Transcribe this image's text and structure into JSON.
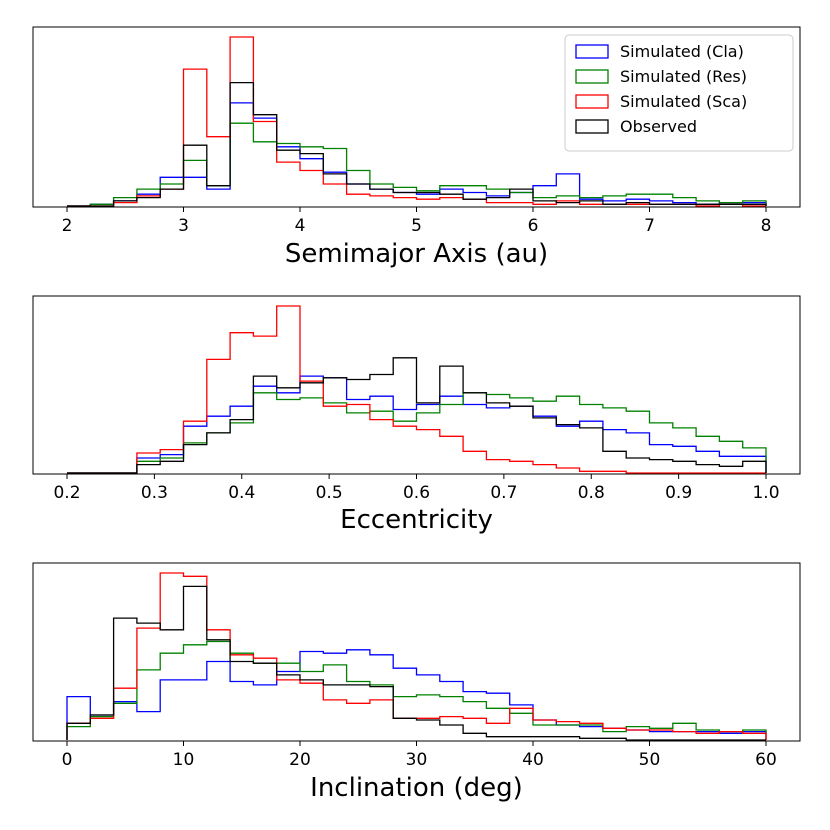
{
  "chart_data": [
    {
      "type": "histogram",
      "xlabel": "Semimajor Axis (au)",
      "xlim": [
        2,
        8
      ],
      "xticks": [
        "2",
        "3",
        "4",
        "5",
        "6",
        "7",
        "8"
      ],
      "xtick_values": [
        2,
        3,
        4,
        5,
        6,
        7,
        8
      ],
      "bin_edges": [
        2.0,
        2.2,
        2.4,
        2.6,
        2.8,
        3.0,
        3.2,
        3.4,
        3.6,
        3.8,
        4.0,
        4.2,
        4.4,
        4.6,
        4.8,
        5.0,
        5.2,
        5.4,
        5.6,
        5.8,
        6.0,
        6.2,
        6.4,
        6.6,
        6.8,
        7.0,
        7.2,
        7.4,
        7.6,
        7.8,
        8.0
      ],
      "ymax": 1.0,
      "legend": {
        "location": "top-right",
        "entries": [
          "Simulated (Cla)",
          "Simulated (Res)",
          "Simulated (Sca)",
          "Observed"
        ]
      },
      "series": [
        {
          "name": "Simulated (Cla)",
          "color": "#0000ff",
          "values": [
            0.0,
            0.01,
            0.03,
            0.07,
            0.17,
            0.17,
            0.1,
            0.61,
            0.52,
            0.35,
            0.28,
            0.2,
            0.13,
            0.1,
            0.08,
            0.07,
            0.1,
            0.08,
            0.06,
            0.08,
            0.12,
            0.19,
            0.04,
            0.03,
            0.04,
            0.03,
            0.02,
            0.01,
            0.02,
            0.02
          ]
        },
        {
          "name": "Simulated (Res)",
          "color": "#008000",
          "values": [
            0.0,
            0.01,
            0.05,
            0.1,
            0.13,
            0.27,
            0.12,
            0.49,
            0.38,
            0.37,
            0.35,
            0.34,
            0.21,
            0.13,
            0.11,
            0.09,
            0.12,
            0.12,
            0.1,
            0.08,
            0.05,
            0.06,
            0.05,
            0.06,
            0.07,
            0.07,
            0.05,
            0.03,
            0.02,
            0.03
          ]
        },
        {
          "name": "Simulated (Sca)",
          "color": "#ff0000",
          "values": [
            0.0,
            0.0,
            0.02,
            0.06,
            0.1,
            0.81,
            0.41,
            1.0,
            0.5,
            0.26,
            0.21,
            0.13,
            0.07,
            0.06,
            0.05,
            0.04,
            0.05,
            0.04,
            0.02,
            0.02,
            0.01,
            0.03,
            0.01,
            0.01,
            0.01,
            0.01,
            0.01,
            0.0,
            0.01,
            0.0
          ]
        },
        {
          "name": "Observed",
          "color": "#000000",
          "values": [
            0.0,
            0.0,
            0.03,
            0.05,
            0.1,
            0.36,
            0.12,
            0.73,
            0.54,
            0.33,
            0.31,
            0.19,
            0.13,
            0.1,
            0.08,
            0.08,
            0.07,
            0.04,
            0.05,
            0.1,
            0.03,
            0.02,
            0.03,
            0.01,
            0.02,
            0.01,
            0.01,
            0.01,
            0.01,
            0.01
          ]
        }
      ]
    },
    {
      "type": "histogram",
      "xlabel": "Eccentricity",
      "xlim": [
        0.2,
        1.0
      ],
      "xticks": [
        "0.2",
        "0.3",
        "0.4",
        "0.5",
        "0.6",
        "0.7",
        "0.8",
        "0.9",
        "1.0"
      ],
      "xtick_values": [
        0.2,
        0.3,
        0.4,
        0.5,
        0.6,
        0.7,
        0.8,
        0.9,
        1.0
      ],
      "bin_edges": [
        0.2,
        0.22667,
        0.25333,
        0.28,
        0.30667,
        0.33333,
        0.36,
        0.38667,
        0.41333,
        0.44,
        0.46667,
        0.49333,
        0.52,
        0.54667,
        0.57333,
        0.6,
        0.62667,
        0.65333,
        0.68,
        0.70667,
        0.73333,
        0.76,
        0.78667,
        0.81333,
        0.84,
        0.86667,
        0.89333,
        0.92,
        0.94667,
        0.97333,
        1.0
      ],
      "ymax": 1.0,
      "series": [
        {
          "name": "Simulated (Cla)",
          "color": "#0000ff",
          "values": [
            0.0,
            0.0,
            0.0,
            0.09,
            0.11,
            0.28,
            0.34,
            0.4,
            0.52,
            0.48,
            0.58,
            0.57,
            0.44,
            0.46,
            0.38,
            0.41,
            0.46,
            0.41,
            0.39,
            0.4,
            0.34,
            0.28,
            0.31,
            0.26,
            0.24,
            0.17,
            0.16,
            0.13,
            0.1,
            0.1
          ]
        },
        {
          "name": "Simulated (Res)",
          "color": "#008000",
          "values": [
            0.0,
            0.0,
            0.0,
            0.07,
            0.09,
            0.18,
            0.24,
            0.3,
            0.48,
            0.44,
            0.45,
            0.42,
            0.36,
            0.37,
            0.31,
            0.36,
            0.41,
            0.48,
            0.47,
            0.45,
            0.43,
            0.46,
            0.41,
            0.39,
            0.37,
            0.3,
            0.27,
            0.22,
            0.19,
            0.15
          ]
        },
        {
          "name": "Simulated (Sca)",
          "color": "#ff0000",
          "values": [
            0.0,
            0.0,
            0.0,
            0.12,
            0.14,
            0.31,
            0.68,
            0.84,
            0.82,
            1.0,
            0.55,
            0.4,
            0.41,
            0.32,
            0.28,
            0.26,
            0.22,
            0.13,
            0.08,
            0.07,
            0.05,
            0.03,
            0.01,
            0.01,
            0.0,
            0.0,
            0.0,
            0.0,
            0.0,
            0.0
          ]
        },
        {
          "name": "Observed",
          "color": "#000000",
          "values": [
            0.0,
            0.0,
            0.0,
            0.05,
            0.07,
            0.17,
            0.24,
            0.32,
            0.58,
            0.51,
            0.54,
            0.57,
            0.56,
            0.59,
            0.69,
            0.42,
            0.64,
            0.48,
            0.42,
            0.4,
            0.33,
            0.29,
            0.27,
            0.13,
            0.09,
            0.08,
            0.07,
            0.05,
            0.04,
            0.07
          ]
        }
      ]
    },
    {
      "type": "histogram",
      "xlabel": "Inclination (deg)",
      "xlim": [
        0,
        60
      ],
      "xticks": [
        "0",
        "10",
        "20",
        "30",
        "40",
        "50",
        "60"
      ],
      "xtick_values": [
        0,
        10,
        20,
        30,
        40,
        50,
        60
      ],
      "bin_edges": [
        0,
        2,
        4,
        6,
        8,
        10,
        12,
        14,
        16,
        18,
        20,
        22,
        24,
        26,
        28,
        30,
        32,
        34,
        36,
        38,
        40,
        42,
        44,
        46,
        48,
        50,
        52,
        54,
        56,
        58,
        60
      ],
      "ymax": 1.0,
      "series": [
        {
          "name": "Simulated (Cla)",
          "color": "#0000ff",
          "values": [
            0.26,
            0.15,
            0.23,
            0.17,
            0.36,
            0.36,
            0.47,
            0.35,
            0.33,
            0.41,
            0.53,
            0.52,
            0.54,
            0.51,
            0.43,
            0.39,
            0.35,
            0.29,
            0.28,
            0.21,
            0.12,
            0.09,
            0.08,
            0.07,
            0.06,
            0.05,
            0.05,
            0.05,
            0.04,
            0.05
          ]
        },
        {
          "name": "Simulated (Res)",
          "color": "#008000",
          "values": [
            0.08,
            0.14,
            0.22,
            0.42,
            0.52,
            0.57,
            0.59,
            0.52,
            0.46,
            0.46,
            0.41,
            0.45,
            0.35,
            0.33,
            0.26,
            0.27,
            0.26,
            0.23,
            0.19,
            0.16,
            0.09,
            0.09,
            0.09,
            0.05,
            0.08,
            0.07,
            0.1,
            0.06,
            0.05,
            0.06
          ]
        },
        {
          "name": "Simulated (Sca)",
          "color": "#ff0000",
          "values": [
            0.1,
            0.13,
            0.31,
            0.67,
            1.0,
            0.98,
            0.66,
            0.51,
            0.49,
            0.36,
            0.34,
            0.24,
            0.22,
            0.24,
            0.13,
            0.13,
            0.14,
            0.13,
            0.1,
            0.19,
            0.12,
            0.11,
            0.1,
            0.07,
            0.06,
            0.06,
            0.05,
            0.04,
            0.05,
            0.04
          ]
        },
        {
          "name": "Observed",
          "color": "#000000",
          "values": [
            0.1,
            0.15,
            0.73,
            0.7,
            0.66,
            0.92,
            0.6,
            0.47,
            0.46,
            0.39,
            0.36,
            0.33,
            0.33,
            0.32,
            0.13,
            0.12,
            0.09,
            0.04,
            0.02,
            0.02,
            0.02,
            0.02,
            0.01,
            0.01,
            0.0,
            0.0,
            0.0,
            0.0,
            0.0,
            0.0
          ]
        }
      ]
    }
  ]
}
